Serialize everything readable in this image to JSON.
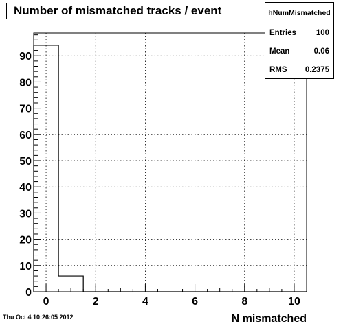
{
  "title": "Number of mismatched tracks / event",
  "stats": {
    "name": "hNumMismatched",
    "rows": [
      {
        "label": "Entries",
        "value": "100"
      },
      {
        "label": "Mean",
        "value": "0.06"
      },
      {
        "label": "RMS",
        "value": "0.2375"
      }
    ]
  },
  "timestamp": "Thu Oct  4 10:26:05 2012",
  "chart_data": {
    "type": "bar",
    "title": "Number of mismatched tracks / event",
    "xlabel": "N mismatched",
    "ylabel": "",
    "xlim": [
      -0.5,
      10.5
    ],
    "ylim": [
      0,
      98.7
    ],
    "grid": true,
    "x_ticks": [
      {
        "value": 0,
        "label": "0"
      },
      {
        "value": 2,
        "label": "2"
      },
      {
        "value": 4,
        "label": "4"
      },
      {
        "value": 6,
        "label": "6"
      },
      {
        "value": 8,
        "label": "8"
      },
      {
        "value": 10,
        "label": "10"
      }
    ],
    "y_ticks": [
      {
        "value": 0,
        "label": "0"
      },
      {
        "value": 10,
        "label": "10"
      },
      {
        "value": 20,
        "label": "20"
      },
      {
        "value": 30,
        "label": "30"
      },
      {
        "value": 40,
        "label": "40"
      },
      {
        "value": 50,
        "label": "50"
      },
      {
        "value": 60,
        "label": "60"
      },
      {
        "value": 70,
        "label": "70"
      },
      {
        "value": 80,
        "label": "80"
      },
      {
        "value": 90,
        "label": "90"
      }
    ],
    "bins": [
      {
        "x_low": -0.5,
        "x_high": 0.5,
        "count": 94
      },
      {
        "x_low": 0.5,
        "x_high": 1.5,
        "count": 6
      },
      {
        "x_low": 1.5,
        "x_high": 2.5,
        "count": 0
      },
      {
        "x_low": 2.5,
        "x_high": 3.5,
        "count": 0
      },
      {
        "x_low": 3.5,
        "x_high": 4.5,
        "count": 0
      },
      {
        "x_low": 4.5,
        "x_high": 5.5,
        "count": 0
      },
      {
        "x_low": 5.5,
        "x_high": 6.5,
        "count": 0
      },
      {
        "x_low": 6.5,
        "x_high": 7.5,
        "count": 0
      },
      {
        "x_low": 7.5,
        "x_high": 8.5,
        "count": 0
      },
      {
        "x_low": 8.5,
        "x_high": 9.5,
        "count": 0
      },
      {
        "x_low": 9.5,
        "x_high": 10.5,
        "count": 0
      }
    ]
  }
}
